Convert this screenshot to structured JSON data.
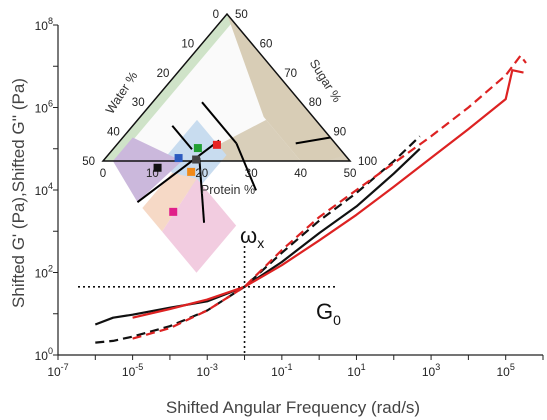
{
  "chart_data": {
    "type": "line",
    "title": "",
    "xlabel": "Shifted Angular Frequency (rad/s)",
    "ylabel": "Shifted G' (Pa),Shifted G'' (Pa)",
    "x_scale": "log",
    "y_scale": "log",
    "xlim": [
      1e-07,
      1000000.0
    ],
    "ylim": [
      1,
      100000000.0
    ],
    "x_ticks": [
      "10-7",
      "10-5",
      "10-3",
      "10-1",
      "101",
      "103",
      "105"
    ],
    "y_ticks": [
      "100",
      "102",
      "104",
      "106",
      "108"
    ],
    "annotations": {
      "omega": "ω",
      "omega_sub": "x",
      "g0": "G",
      "g0_sub": "0"
    },
    "crossover": {
      "x": 0.01,
      "y": 45
    },
    "series": [
      {
        "color": "#111111",
        "style": "solid",
        "x": [
          1e-06,
          3e-06,
          1e-05,
          0.0001,
          0.001,
          0.01,
          0.1,
          1,
          10,
          100,
          500
        ],
        "y": [
          5.5,
          8,
          9.5,
          14,
          20,
          45,
          180,
          900,
          4000,
          25000,
          100000
        ]
      },
      {
        "color": "#111111",
        "style": "dashed",
        "x": [
          1e-06,
          3e-06,
          1e-05,
          0.0001,
          0.001,
          0.01,
          0.1,
          1,
          10,
          100,
          500
        ],
        "y": [
          2,
          2.2,
          2.8,
          5,
          12,
          45,
          300,
          1800,
          8500,
          50000,
          200000
        ]
      },
      {
        "color": "#dd2222",
        "style": "solid",
        "x": [
          1e-05,
          0.0001,
          0.001,
          0.01,
          0.1,
          1,
          10,
          100,
          1000,
          10000,
          100000,
          150000,
          300000
        ],
        "y": [
          8,
          13,
          22,
          45,
          150,
          600,
          2500,
          12000,
          60000,
          300000,
          1600000,
          8000000,
          7000000
        ]
      },
      {
        "color": "#dd2222",
        "style": "dashed",
        "x": [
          1e-05,
          0.0001,
          0.001,
          0.01,
          0.1,
          1,
          10,
          100,
          1000,
          10000,
          100000,
          250000,
          350000
        ],
        "y": [
          2.5,
          4.5,
          12,
          45,
          350,
          2200,
          10000,
          45000,
          200000,
          1000000,
          6000000,
          18000000,
          12000000
        ]
      }
    ]
  },
  "inset": {
    "type": "ternary",
    "bottom_axis": {
      "label": "Protein %",
      "ticks": [
        "0",
        "10",
        "20",
        "30",
        "40",
        "50"
      ]
    },
    "left_axis": {
      "label": "Water %",
      "ticks": [
        "0",
        "10",
        "20",
        "30",
        "40",
        "50"
      ]
    },
    "right_axis": {
      "label": "Sugar %",
      "ticks": [
        "100",
        "90",
        "80",
        "70",
        "60",
        "50"
      ]
    },
    "points": [
      {
        "color": "#e62222",
        "protein": 20.3,
        "water": 24.2
      },
      {
        "color": "#22a033",
        "protein": 17.0,
        "water": 28.6
      },
      {
        "color": "#444444",
        "protein": 18.6,
        "water": 30.9
      },
      {
        "color": "#2c5bbf",
        "protein": 14.8,
        "water": 34.2
      },
      {
        "color": "#f08a18",
        "protein": 19.7,
        "water": 34.0
      },
      {
        "color": "#111111",
        "protein": 12.2,
        "water": 40.1
      },
      {
        "color": "#e0208a",
        "protein": 22.9,
        "water": 44.4
      }
    ]
  }
}
